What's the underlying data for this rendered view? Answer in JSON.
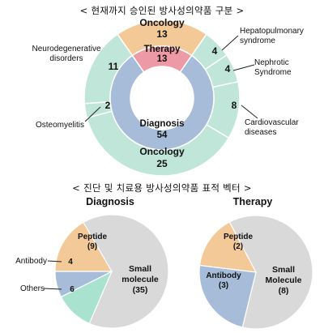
{
  "titles": {
    "top": "< 현재까지 승인된 방사성의약품 구분 >",
    "bottom": "< 진단 및 치료용 방사성의약품 표적 벡터 >"
  },
  "colors": {
    "oncology": "#F3C998",
    "therapy": "#EE9AA6",
    "diagnosis": "#A6BCD8",
    "teal": "#BFE6D8",
    "grey": "#D9D9D9",
    "pie_teal": "#A9E3CF"
  },
  "chart_data": [
    {
      "type": "pie",
      "title": "현재까지 승인된 방사성의약품 구분",
      "inner": [
        {
          "label": "Therapy",
          "value": 13
        },
        {
          "label": "Diagnosis",
          "value": 54
        }
      ],
      "outer": [
        {
          "label": "Oncology",
          "value": 13
        },
        {
          "label": "Hepatopulmonary syndrome",
          "value": 4
        },
        {
          "label": "Nephrotic Syndrome",
          "value": 4
        },
        {
          "label": "Cardiovascular diseases",
          "value": 8
        },
        {
          "label": "Oncology",
          "value": 25
        },
        {
          "label": "Osteomyelitis",
          "value": 2
        },
        {
          "label": "Neurodegenerative disorders",
          "value": 11
        }
      ]
    },
    {
      "type": "pie",
      "title": "Diagnosis",
      "slices": [
        {
          "label": "Peptide",
          "value": 9
        },
        {
          "label": "Small molecule",
          "value": 35
        },
        {
          "label": "Others",
          "value": 6
        },
        {
          "label": "Antibody",
          "value": 4
        }
      ]
    },
    {
      "type": "pie",
      "title": "Therapy",
      "slices": [
        {
          "label": "Peptide",
          "value": 2
        },
        {
          "label": "Small Molecule",
          "value": 8
        },
        {
          "label": "Antibody",
          "value": 3
        }
      ]
    }
  ]
}
